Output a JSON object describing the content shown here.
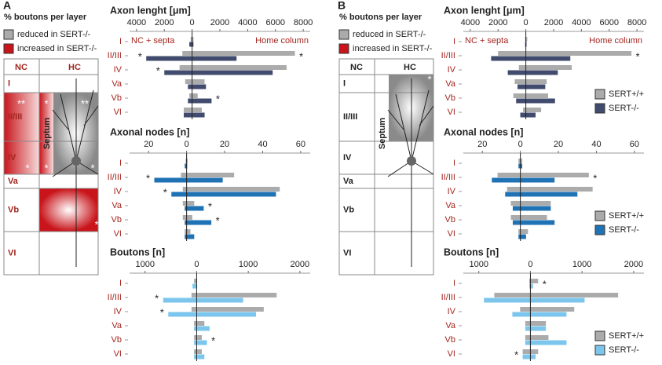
{
  "panels": [
    "A",
    "B"
  ],
  "diagrams": [
    {
      "title": "% boutons per layer",
      "legend": [
        "reduced in SERT-/-",
        "increased in SERT-/-"
      ],
      "columns": [
        "NC",
        "HC"
      ],
      "layers": [
        "I",
        "II/III",
        "IV",
        "Va",
        "Vb",
        "VI"
      ],
      "septum": "Septum",
      "stars": [
        "**",
        "*",
        "**",
        "*",
        "*",
        "*",
        "*"
      ]
    },
    {
      "title": "% boutons per layer",
      "legend": [
        "reduced in SERT-/-",
        "increased in SERT-/-"
      ],
      "columns": [
        "NC",
        "HC"
      ],
      "layers": [
        "I",
        "II/III",
        "IV",
        "Va",
        "Vb",
        "VI"
      ],
      "septum": "Septum",
      "stars": [
        "*"
      ]
    }
  ],
  "chart_data": [
    {
      "type": "bar",
      "title": "Axon lenght [μm]",
      "header_left": "NC + septa",
      "header_right": "Home column",
      "categories": [
        "I",
        "II/III",
        "IV",
        "Va",
        "Vb",
        "VI"
      ],
      "xlim": [
        -4500,
        8500
      ],
      "xticks": [
        {
          "value": -4000,
          "label": "4000"
        },
        {
          "value": -2000,
          "label": "2000"
        },
        0,
        2000,
        4000,
        6000,
        8000
      ],
      "series": [
        {
          "color": "#ababab",
          "values": [
            100,
            7400,
            6800,
            900,
            400,
            700
          ],
          "nc_values": [
            -100,
            -700,
            -900,
            -500,
            -200,
            -600
          ]
        },
        {
          "color": "#414b6e",
          "values": [
            100,
            3200,
            5800,
            1000,
            1400,
            900
          ],
          "nc_values": [
            -200,
            -3300,
            -2000,
            -300,
            -300,
            -600
          ]
        }
      ],
      "stars_left": [
        null,
        "*",
        "*",
        null,
        null,
        null
      ],
      "stars_right": [
        null,
        "*",
        null,
        null,
        "*",
        null
      ]
    },
    {
      "type": "bar",
      "title": "Axonal nodes [n]",
      "categories": [
        "I",
        "II/III",
        "IV",
        "Va",
        "Vb",
        "VI"
      ],
      "xlim": [
        -30,
        65
      ],
      "xticks": [
        {
          "value": -20,
          "label": "20"
        },
        0,
        20,
        40,
        60
      ],
      "series": [
        {
          "color": "#ababab",
          "values": [
            0.5,
            25,
            49,
            4,
            3,
            2
          ],
          "nc_values": [
            -0.5,
            -3,
            -2,
            -2,
            -2,
            -1
          ]
        },
        {
          "color": "#1f72b4",
          "values": [
            0.3,
            19,
            47,
            9,
            13,
            4
          ],
          "nc_values": [
            -1,
            -17,
            -8,
            -1,
            -1,
            -1
          ]
        }
      ],
      "stars_left": [
        null,
        "*",
        "*",
        null,
        null,
        null
      ],
      "stars_right": [
        null,
        null,
        null,
        "*",
        "*",
        null
      ]
    },
    {
      "type": "bar",
      "title": "Boutons [n]",
      "categories": [
        "I",
        "II/III",
        "IV",
        "Va",
        "Vb",
        "VI"
      ],
      "xlim": [
        -1300,
        2200
      ],
      "xticks": [
        {
          "value": -1000,
          "label": "1000"
        },
        0,
        1000,
        2000
      ],
      "series": [
        {
          "color": "#ababab",
          "values": [
            10,
            1550,
            1300,
            150,
            100,
            100
          ],
          "nc_values": [
            -50,
            -100,
            -100,
            -50,
            -50,
            -50
          ]
        },
        {
          "color": "#7cc6ee",
          "values": [
            10,
            900,
            1150,
            250,
            200,
            150
          ],
          "nc_values": [
            -80,
            -650,
            -550,
            -50,
            -50,
            -50
          ]
        }
      ],
      "stars_left": [
        null,
        "*",
        "*",
        null,
        null,
        null
      ],
      "stars_right": [
        null,
        null,
        null,
        null,
        "*",
        null
      ]
    },
    {
      "type": "bar",
      "title": "Axon lenght [μm]",
      "header_left": "NC + septa",
      "header_right": "Home column",
      "legend": true,
      "categories": [
        "I",
        "II/III",
        "IV",
        "Va",
        "Vb",
        "VI"
      ],
      "xlim": [
        -4500,
        8500
      ],
      "xticks": [
        {
          "value": -4000,
          "label": "4000"
        },
        {
          "value": -2000,
          "label": "2000"
        },
        0,
        2000,
        4000,
        6000,
        8000
      ],
      "series": [
        {
          "name": "SERT+/+",
          "color": "#ababab",
          "values": [
            100,
            7600,
            3300,
            1500,
            1600,
            1100
          ],
          "nc_values": [
            -50,
            -2000,
            -500,
            -800,
            -900,
            -200
          ]
        },
        {
          "name": "SERT-/-",
          "color": "#414b6e",
          "values": [
            50,
            3200,
            2300,
            1400,
            2100,
            700
          ],
          "nc_values": [
            -50,
            -2500,
            -1300,
            -600,
            -700,
            -400
          ]
        }
      ],
      "stars_left": [
        null,
        null,
        null,
        null,
        null,
        null
      ],
      "stars_right": [
        null,
        "*",
        null,
        null,
        null,
        null
      ]
    },
    {
      "type": "bar",
      "title": "Axonal nodes [n]",
      "legend": true,
      "categories": [
        "I",
        "II/III",
        "IV",
        "Va",
        "Vb",
        "VI"
      ],
      "xlim": [
        -30,
        65
      ],
      "xticks": [
        {
          "value": -20,
          "label": "20"
        },
        0,
        20,
        40,
        60
      ],
      "series": [
        {
          "name": "SERT+/+",
          "color": "#ababab",
          "values": [
            1,
            36,
            38,
            16,
            14,
            4
          ],
          "nc_values": [
            -1,
            -12,
            -7,
            -5,
            -5,
            -1
          ]
        },
        {
          "name": "SERT-/-",
          "color": "#1f72b4",
          "values": [
            1,
            18,
            30,
            16,
            18,
            3
          ],
          "nc_values": [
            -1,
            -15,
            -8,
            -4,
            -4,
            -1
          ]
        }
      ],
      "stars_left": [
        null,
        null,
        null,
        null,
        null,
        null
      ],
      "stars_right": [
        null,
        "*",
        null,
        null,
        null,
        null
      ]
    },
    {
      "type": "bar",
      "title": "Boutons [n]",
      "legend": true,
      "categories": [
        "I",
        "II/III",
        "IV",
        "Va",
        "Vb",
        "VI"
      ],
      "xlim": [
        -1300,
        2200
      ],
      "xticks": [
        {
          "value": -1000,
          "label": "1000"
        },
        0,
        1000,
        2000
      ],
      "series": [
        {
          "name": "SERT+/+",
          "color": "#ababab",
          "values": [
            150,
            1700,
            850,
            300,
            350,
            150
          ],
          "nc_values": [
            -20,
            -700,
            -200,
            -100,
            -100,
            -150
          ]
        },
        {
          "name": "SERT-/-",
          "color": "#7cc6ee",
          "values": [
            50,
            1050,
            700,
            300,
            700,
            100
          ],
          "nc_values": [
            -20,
            -900,
            -350,
            -100,
            -100,
            -150
          ]
        }
      ],
      "stars_left": [
        null,
        null,
        null,
        null,
        null,
        "*"
      ],
      "stars_right": [
        "*",
        null,
        null,
        null,
        null,
        null
      ]
    }
  ]
}
